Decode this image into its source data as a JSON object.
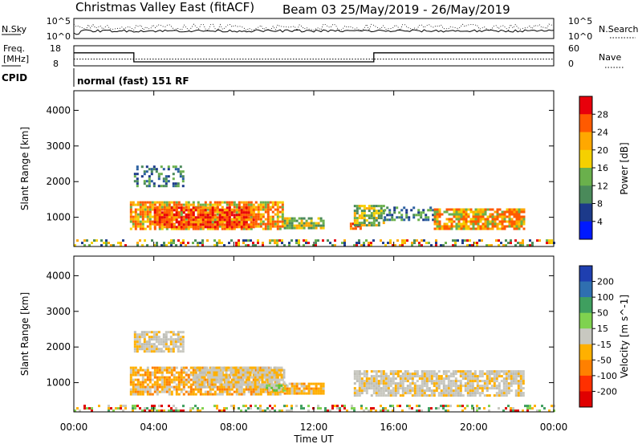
{
  "header": {
    "station": "Christmas Valley East (fitACF)",
    "beam_and_dates": "Beam 03 25/May/2019 - 26/May/2019"
  },
  "top_panels": {
    "nsky": {
      "left_label": "N.Sky",
      "left_ticks": [
        "10^5",
        "10^0"
      ],
      "right_ticks": [
        "10^5",
        "10^0"
      ],
      "right_label": "N.Search",
      "right_legend_style": "dotted"
    },
    "freq": {
      "left_label_line1": "Freq.",
      "left_label_line2": "[MHz]",
      "left_ticks": [
        "18",
        "8"
      ],
      "right_ticks": [
        "60",
        "0"
      ],
      "right_label": "Nave",
      "right_legend_style": "dotted",
      "freq_steps": [
        {
          "from": 0.0,
          "to": 3.0,
          "value": 14.5
        },
        {
          "from": 3.0,
          "to": 15.0,
          "value": 10.0
        },
        {
          "from": 15.0,
          "to": 24.0,
          "value": 14.5
        }
      ],
      "nave_level": 20
    },
    "cpid": {
      "label": "CPID",
      "mode_text": "normal (fast) 151 RF"
    }
  },
  "chart_data": [
    {
      "type": "heatmap",
      "name": "power",
      "ylabel": "Slant Range [km]",
      "y_ticks": [
        1000,
        2000,
        3000,
        4000
      ],
      "ylim": [
        180,
        4550
      ],
      "xlim": [
        0,
        24
      ],
      "colorbar": {
        "label": "Power [dB]",
        "ticks": [
          "28",
          "24",
          "20",
          "16",
          "12",
          "8",
          "4"
        ],
        "colors": [
          "#e8000b",
          "#ff5a00",
          "#ffa800",
          "#f5d000",
          "#6ab04c",
          "#4a8a5a",
          "#1c3a8a",
          "#0019ff"
        ]
      },
      "echo_regions": [
        {
          "t_start": 2.8,
          "t_end": 10.5,
          "r_start": 650,
          "r_end": 1450,
          "level": "high"
        },
        {
          "t_start": 4.0,
          "t_end": 9.0,
          "r_start": 750,
          "r_end": 1300,
          "level": "max"
        },
        {
          "t_start": 10.5,
          "t_end": 12.5,
          "r_start": 700,
          "r_end": 1000,
          "level": "medium"
        },
        {
          "t_start": 13.8,
          "t_end": 14.4,
          "r_start": 650,
          "r_end": 850,
          "level": "max"
        },
        {
          "t_start": 14.0,
          "t_end": 15.5,
          "r_start": 800,
          "r_end": 1350,
          "level": "medium"
        },
        {
          "t_start": 15.5,
          "t_end": 18.0,
          "r_start": 900,
          "r_end": 1300,
          "level": "low"
        },
        {
          "t_start": 18.0,
          "t_end": 22.5,
          "r_start": 650,
          "r_end": 1250,
          "level": "high"
        },
        {
          "t_start": 3.0,
          "t_end": 5.5,
          "r_start": 1850,
          "r_end": 2450,
          "level": "low"
        },
        {
          "t_start": 0.0,
          "t_end": 24.0,
          "r_start": 200,
          "r_end": 380,
          "level": "mixed"
        }
      ]
    },
    {
      "type": "heatmap",
      "name": "velocity",
      "ylabel": "Slant Range [km]",
      "y_ticks": [
        1000,
        2000,
        3000,
        4000
      ],
      "ylim": [
        180,
        4550
      ],
      "xlim": [
        0,
        24
      ],
      "colorbar": {
        "label": "Velocity [m s^-1]",
        "ticks": [
          "200",
          "100",
          "50",
          "15",
          "-15",
          "-50",
          "-100",
          "-200"
        ],
        "colors": [
          "#1f3fb0",
          "#2f6fb0",
          "#3f9f5f",
          "#7fd24f",
          "#c8c8c0",
          "#ffb000",
          "#ff8000",
          "#ff3000",
          "#e00000"
        ]
      },
      "echo_regions": [
        {
          "t_start": 2.8,
          "t_end": 10.5,
          "r_start": 650,
          "r_end": 1450,
          "level": "negative"
        },
        {
          "t_start": 6.0,
          "t_end": 10.5,
          "r_start": 900,
          "r_end": 1450,
          "level": "near-zero"
        },
        {
          "t_start": 9.6,
          "t_end": 10.6,
          "r_start": 750,
          "r_end": 950,
          "level": "positive"
        },
        {
          "t_start": 10.5,
          "t_end": 12.5,
          "r_start": 700,
          "r_end": 1000,
          "level": "negative"
        },
        {
          "t_start": 14.0,
          "t_end": 22.5,
          "r_start": 650,
          "r_end": 1350,
          "level": "near-zero"
        },
        {
          "t_start": 3.0,
          "t_end": 5.5,
          "r_start": 1850,
          "r_end": 2450,
          "level": "near-zero"
        },
        {
          "t_start": 0.0,
          "t_end": 24.0,
          "r_start": 200,
          "r_end": 380,
          "level": "mixed"
        }
      ]
    }
  ],
  "x_axis": {
    "ticks": [
      "00:00",
      "04:00",
      "08:00",
      "12:00",
      "16:00",
      "20:00",
      "00:00"
    ],
    "tick_hours": [
      0,
      4,
      8,
      12,
      16,
      20,
      24
    ],
    "label": "Time UT"
  }
}
